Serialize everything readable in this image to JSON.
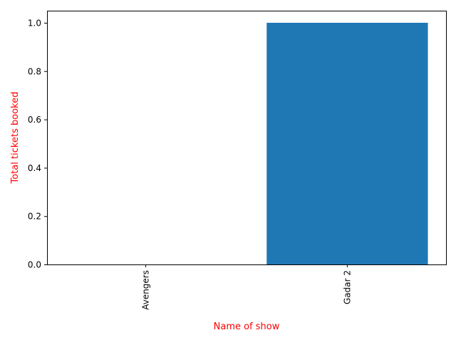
{
  "chart_data": {
    "type": "bar",
    "categories": [
      "Avengers",
      "Gadar 2"
    ],
    "values": [
      0,
      1
    ],
    "xlabel": "Name of show",
    "ylabel": "Total tickets booked",
    "ylim": [
      0,
      1.05
    ],
    "yticks": [
      0.0,
      0.2,
      0.4,
      0.6,
      0.8,
      1.0
    ],
    "ytick_labels": [
      "0.0",
      "0.2",
      "0.4",
      "0.6",
      "0.8",
      "1.0"
    ],
    "bar_color": "#1f77b4",
    "label_color": "#ff0000",
    "grid": false,
    "legend": "none",
    "x_tick_rotation": "vertical"
  }
}
